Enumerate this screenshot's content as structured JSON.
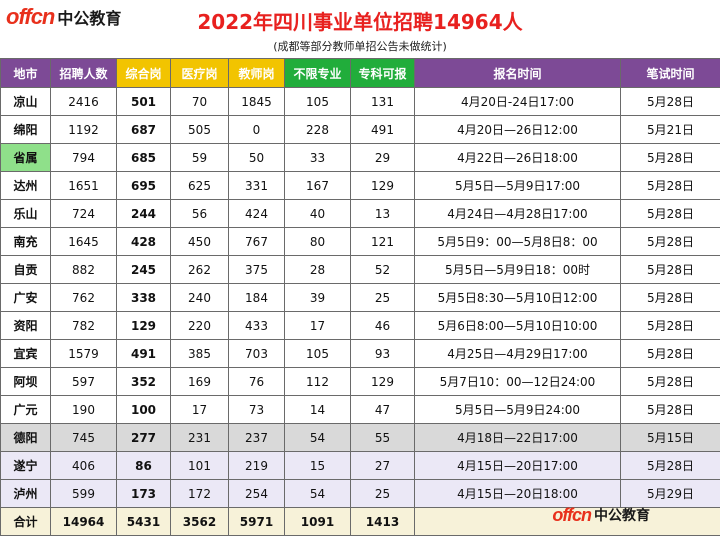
{
  "header": {
    "logo_en": "offcn",
    "logo_cn": "中公教育",
    "title": "2022年四川事业单位招聘14964人",
    "subtitle": "(成都等部分教师单招公告未做统计)"
  },
  "columns": [
    "地市",
    "招聘人数",
    "综合岗",
    "医疗岗",
    "教师岗",
    "不限专业",
    "专科可报",
    "报名时间",
    "笔试时间"
  ],
  "rows": [
    {
      "city": "凉山",
      "total": "2416",
      "comp": "501",
      "med": "70",
      "teach": "1845",
      "any": "105",
      "junior": "131",
      "date": "4月20日-24日17:00",
      "exam": "5月28日"
    },
    {
      "city": "绵阳",
      "total": "1192",
      "comp": "687",
      "med": "505",
      "teach": "0",
      "any": "228",
      "junior": "491",
      "date": "4月20日—26日12:00",
      "exam": "5月21日"
    },
    {
      "city": "省属",
      "total": "794",
      "comp": "685",
      "med": "59",
      "teach": "50",
      "any": "33",
      "junior": "29",
      "date": "4月22日—26日18:00",
      "exam": "5月28日"
    },
    {
      "city": "达州",
      "total": "1651",
      "comp": "695",
      "med": "625",
      "teach": "331",
      "any": "167",
      "junior": "129",
      "date": "5月5日—5月9日17:00",
      "exam": "5月28日"
    },
    {
      "city": "乐山",
      "total": "724",
      "comp": "244",
      "med": "56",
      "teach": "424",
      "any": "40",
      "junior": "13",
      "date": "4月24日—4月28日17:00",
      "exam": "5月28日"
    },
    {
      "city": "南充",
      "total": "1645",
      "comp": "428",
      "med": "450",
      "teach": "767",
      "any": "80",
      "junior": "121",
      "date": "5月5日9：00—5月8日8：00",
      "exam": "5月28日"
    },
    {
      "city": "自贡",
      "total": "882",
      "comp": "245",
      "med": "262",
      "teach": "375",
      "any": "28",
      "junior": "52",
      "date": "5月5日—5月9日18：00时",
      "exam": "5月28日"
    },
    {
      "city": "广安",
      "total": "762",
      "comp": "338",
      "med": "240",
      "teach": "184",
      "any": "39",
      "junior": "25",
      "date": "5月5日8:30—5月10日12:00",
      "exam": "5月28日"
    },
    {
      "city": "资阳",
      "total": "782",
      "comp": "129",
      "med": "220",
      "teach": "433",
      "any": "17",
      "junior": "46",
      "date": "5月6日8:00—5月10日10:00",
      "exam": "5月28日"
    },
    {
      "city": "宜宾",
      "total": "1579",
      "comp": "491",
      "med": "385",
      "teach": "703",
      "any": "105",
      "junior": "93",
      "date": "4月25日—4月29日17:00",
      "exam": "5月28日"
    },
    {
      "city": "阿坝",
      "total": "597",
      "comp": "352",
      "med": "169",
      "teach": "76",
      "any": "112",
      "junior": "129",
      "date": "5月7日10：00—12日24:00",
      "exam": "5月28日"
    },
    {
      "city": "广元",
      "total": "190",
      "comp": "100",
      "med": "17",
      "teach": "73",
      "any": "14",
      "junior": "47",
      "date": "5月5日—5月9日24:00",
      "exam": "5月28日"
    },
    {
      "city": "德阳",
      "total": "745",
      "comp": "277",
      "med": "231",
      "teach": "237",
      "any": "54",
      "junior": "55",
      "date": "4月18日—22日17:00",
      "exam": "5月15日"
    },
    {
      "city": "遂宁",
      "total": "406",
      "comp": "86",
      "med": "101",
      "teach": "219",
      "any": "15",
      "junior": "27",
      "date": "4月15日—20日17:00",
      "exam": "5月28日"
    },
    {
      "city": "泸州",
      "total": "599",
      "comp": "173",
      "med": "172",
      "teach": "254",
      "any": "54",
      "junior": "25",
      "date": "4月15日—20日18:00",
      "exam": "5月29日"
    }
  ],
  "totals": {
    "city": "合计",
    "total": "14964",
    "comp": "5431",
    "med": "3562",
    "teach": "5971",
    "any": "1091",
    "junior": "1413"
  },
  "footer": {
    "logo_en": "offcn",
    "logo_cn": "中公教育"
  }
}
